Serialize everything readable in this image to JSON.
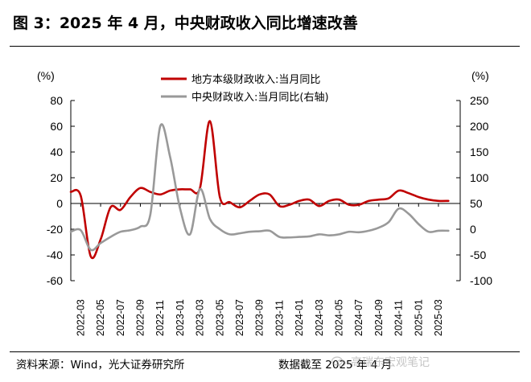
{
  "header": {
    "title": "图 3：2025 年 4 月，中央财政收入同比增速改善"
  },
  "footer": {
    "source": "资料来源：Wind，光大证券研究所",
    "cutoff": "数据截至 2025 年 4 月"
  },
  "watermark": {
    "icon": "wechat-icon",
    "text": "高瑞东宏观笔记"
  },
  "chart_data": {
    "type": "line",
    "left_unit": "(%)",
    "right_unit": "(%)",
    "left_ylim": [
      -60,
      80
    ],
    "right_ylim": [
      -100,
      250
    ],
    "left_ticks": [
      "80",
      "60",
      "40",
      "20",
      "0",
      "-20",
      "-40",
      "-60"
    ],
    "right_ticks": [
      "250",
      "200",
      "150",
      "100",
      "50",
      "0",
      "-50",
      "-100"
    ],
    "x_tick_labels": [
      "2022-03",
      "2022-05",
      "2022-07",
      "2022-09",
      "2022-11",
      "2023-01",
      "2023-03",
      "2023-05",
      "2023-07",
      "2023-09",
      "2023-11",
      "2024-01",
      "2024-03",
      "2024-05",
      "2024-07",
      "2024-09",
      "2024-11",
      "2025-01",
      "2025-03"
    ],
    "legend_position": "top-center",
    "series": [
      {
        "name": "地方本级财政收入:当月同比",
        "axis": "left",
        "color": "#c00000",
        "x": [
          "2022-02",
          "2022-03",
          "2022-04",
          "2022-05",
          "2022-06",
          "2022-07",
          "2022-08",
          "2022-09",
          "2022-10",
          "2022-11",
          "2022-12",
          "2023-01",
          "2023-02",
          "2023-03",
          "2023-04",
          "2023-05",
          "2023-06",
          "2023-07",
          "2023-08",
          "2023-09",
          "2023-10",
          "2023-11",
          "2023-12",
          "2024-01",
          "2024-02",
          "2024-03",
          "2024-04",
          "2024-05",
          "2024-06",
          "2024-07",
          "2024-08",
          "2024-09",
          "2024-10",
          "2024-11",
          "2024-12",
          "2025-01",
          "2025-02",
          "2025-03",
          "2025-04"
        ],
        "values": [
          9,
          6,
          -41,
          -28,
          -3,
          -5,
          5,
          12,
          9,
          7,
          10,
          11,
          11,
          12,
          64,
          5,
          1,
          -3,
          2,
          7,
          7,
          -2,
          -1,
          2,
          3,
          -2,
          2,
          3,
          -1,
          -1,
          2,
          3,
          4,
          10,
          8,
          5,
          3,
          2,
          2
        ]
      },
      {
        "name": "中央财政收入:当月同比(右轴)",
        "axis": "right",
        "color": "#999999",
        "x": [
          "2022-02",
          "2022-03",
          "2022-04",
          "2022-05",
          "2022-06",
          "2022-07",
          "2022-08",
          "2022-09",
          "2022-10",
          "2022-11",
          "2022-12",
          "2023-01",
          "2023-02",
          "2023-03",
          "2023-04",
          "2023-05",
          "2023-06",
          "2023-07",
          "2023-08",
          "2023-09",
          "2023-10",
          "2023-11",
          "2023-12",
          "2024-01",
          "2024-02",
          "2024-03",
          "2024-04",
          "2024-05",
          "2024-06",
          "2024-07",
          "2024-08",
          "2024-09",
          "2024-10",
          "2024-11",
          "2024-12",
          "2025-01",
          "2025-02",
          "2025-03",
          "2025-04"
        ],
        "values": [
          -5,
          -2,
          -40,
          -27,
          -15,
          -5,
          -2,
          5,
          28,
          200,
          140,
          40,
          -10,
          78,
          20,
          0,
          -10,
          -8,
          -5,
          -4,
          -3,
          -15,
          -16,
          -15,
          -14,
          -10,
          -12,
          -10,
          -5,
          -6,
          -3,
          3,
          14,
          40,
          30,
          10,
          -5,
          -3,
          -3
        ]
      }
    ]
  }
}
